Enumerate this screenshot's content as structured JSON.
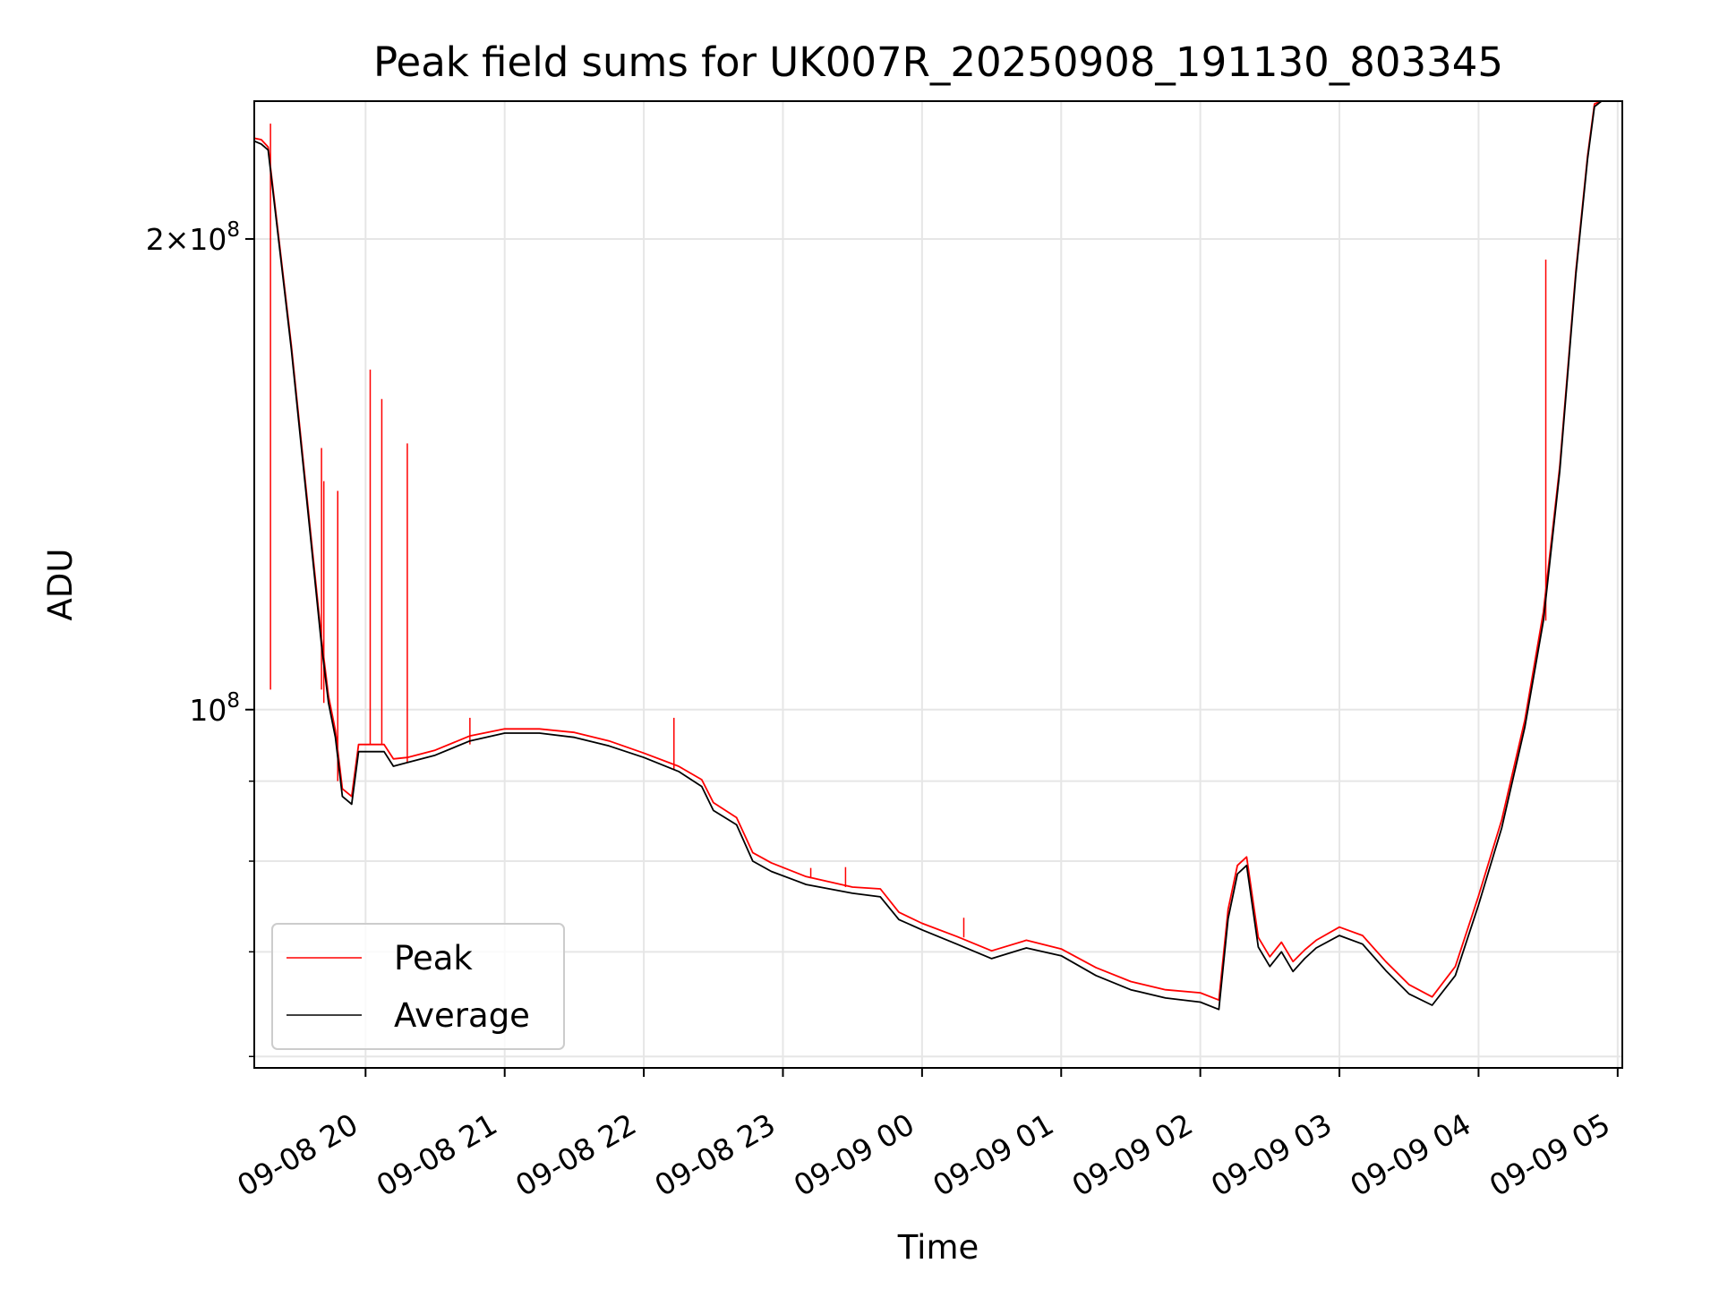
{
  "chart_data": {
    "type": "line",
    "title": "Peak field sums for UK007R_20250908_191130_803345",
    "xlabel": "Time",
    "ylabel": "ADU",
    "x_axis": {
      "kind": "datetime",
      "range": [
        "2025-09-08 19:12",
        "2025-09-09 05:02"
      ],
      "ticks": [
        {
          "t": "2025-09-08 20:00",
          "label": "09-08 20"
        },
        {
          "t": "2025-09-08 21:00",
          "label": "09-08 21"
        },
        {
          "t": "2025-09-08 22:00",
          "label": "09-08 22"
        },
        {
          "t": "2025-09-08 23:00",
          "label": "09-08 23"
        },
        {
          "t": "2025-09-09 00:00",
          "label": "09-09 00"
        },
        {
          "t": "2025-09-09 01:00",
          "label": "09-09 01"
        },
        {
          "t": "2025-09-09 02:00",
          "label": "09-09 02"
        },
        {
          "t": "2025-09-09 03:00",
          "label": "09-09 03"
        },
        {
          "t": "2025-09-09 04:00",
          "label": "09-09 04"
        },
        {
          "t": "2025-09-09 05:00",
          "label": "09-09 05"
        }
      ]
    },
    "y_axis": {
      "scale": "log",
      "range": [
        59000000,
        245000000
      ],
      "major_ticks": [
        {
          "v": 100000000,
          "mant": "",
          "exp": "8"
        },
        {
          "v": 200000000,
          "mant": "2",
          "exp": "8"
        }
      ],
      "minor_ticks": [
        60000000,
        70000000,
        80000000,
        90000000
      ]
    },
    "grid": true,
    "legend": {
      "placement": "lower-left",
      "entries": [
        {
          "name": "Peak",
          "color": "#ff0000"
        },
        {
          "name": "Average",
          "color": "#000000"
        }
      ]
    },
    "series": [
      {
        "name": "Average",
        "color": "#000000",
        "points": [
          [
            "2025-09-08 19:12",
            231000000
          ],
          [
            "2025-09-08 19:15",
            230000000
          ],
          [
            "2025-09-08 19:18",
            228000000
          ],
          [
            "2025-09-08 19:28",
            170000000
          ],
          [
            "2025-09-08 19:36",
            130000000
          ],
          [
            "2025-09-08 19:41",
            110000000
          ],
          [
            "2025-09-08 19:44",
            101000000
          ],
          [
            "2025-09-08 19:47",
            96000000
          ],
          [
            "2025-09-08 19:50",
            88000000
          ],
          [
            "2025-09-08 19:54",
            87000000
          ],
          [
            "2025-09-08 19:57",
            94000000
          ],
          [
            "2025-09-08 20:02",
            94000000
          ],
          [
            "2025-09-08 20:08",
            94000000
          ],
          [
            "2025-09-08 20:12",
            92000000
          ],
          [
            "2025-09-08 20:18",
            92500000
          ],
          [
            "2025-09-08 20:30",
            93500000
          ],
          [
            "2025-09-08 20:45",
            95500000
          ],
          [
            "2025-09-08 21:00",
            96600000
          ],
          [
            "2025-09-08 21:15",
            96600000
          ],
          [
            "2025-09-08 21:30",
            96000000
          ],
          [
            "2025-09-08 21:45",
            94800000
          ],
          [
            "2025-09-08 22:00",
            93200000
          ],
          [
            "2025-09-08 22:15",
            91300000
          ],
          [
            "2025-09-08 22:25",
            89300000
          ],
          [
            "2025-09-08 22:30",
            86200000
          ],
          [
            "2025-09-08 22:40",
            84400000
          ],
          [
            "2025-09-08 22:47",
            80000000
          ],
          [
            "2025-09-08 22:55",
            78800000
          ],
          [
            "2025-09-08 23:10",
            77300000
          ],
          [
            "2025-09-08 23:30",
            76300000
          ],
          [
            "2025-09-08 23:42",
            75900000
          ],
          [
            "2025-09-08 23:50",
            73400000
          ],
          [
            "2025-09-09 00:00",
            72300000
          ],
          [
            "2025-09-09 00:15",
            70800000
          ],
          [
            "2025-09-09 00:30",
            69300000
          ],
          [
            "2025-09-09 00:45",
            70400000
          ],
          [
            "2025-09-09 01:00",
            69600000
          ],
          [
            "2025-09-09 01:15",
            67600000
          ],
          [
            "2025-09-09 01:30",
            66200000
          ],
          [
            "2025-09-09 01:45",
            65400000
          ],
          [
            "2025-09-09 02:00",
            65000000
          ],
          [
            "2025-09-09 02:08",
            64300000
          ],
          [
            "2025-09-09 02:12",
            73500000
          ],
          [
            "2025-09-09 02:16",
            78500000
          ],
          [
            "2025-09-09 02:20",
            79500000
          ],
          [
            "2025-09-09 02:25",
            70500000
          ],
          [
            "2025-09-09 02:30",
            68500000
          ],
          [
            "2025-09-09 02:35",
            70000000
          ],
          [
            "2025-09-09 02:40",
            68000000
          ],
          [
            "2025-09-09 02:45",
            69300000
          ],
          [
            "2025-09-09 02:50",
            70400000
          ],
          [
            "2025-09-09 03:00",
            71700000
          ],
          [
            "2025-09-09 03:10",
            70800000
          ],
          [
            "2025-09-09 03:20",
            68100000
          ],
          [
            "2025-09-09 03:30",
            65800000
          ],
          [
            "2025-09-09 03:40",
            64700000
          ],
          [
            "2025-09-09 03:50",
            67600000
          ],
          [
            "2025-09-09 04:00",
            75000000
          ],
          [
            "2025-09-09 04:10",
            84000000
          ],
          [
            "2025-09-09 04:20",
            97500000
          ],
          [
            "2025-09-09 04:28",
            114000000
          ],
          [
            "2025-09-09 04:35",
            142000000
          ],
          [
            "2025-09-09 04:42",
            190000000
          ],
          [
            "2025-09-09 04:47",
            225000000
          ],
          [
            "2025-09-09 04:50",
            243000000
          ],
          [
            "2025-09-09 04:53",
            245000000
          ]
        ]
      },
      {
        "name": "Peak",
        "color": "#ff0000",
        "points": [
          [
            "2025-09-08 19:12",
            232000000
          ],
          [
            "2025-09-08 19:15",
            231500000
          ],
          [
            "2025-09-08 19:18",
            229000000
          ],
          [
            "2025-09-08 19:28",
            171000000
          ],
          [
            "2025-09-08 19:36",
            131000000
          ],
          [
            "2025-09-08 19:41",
            111000000
          ],
          [
            "2025-09-08 19:44",
            102000000
          ],
          [
            "2025-09-08 19:47",
            97000000
          ],
          [
            "2025-09-08 19:50",
            89000000
          ],
          [
            "2025-09-08 19:54",
            88000000
          ],
          [
            "2025-09-08 19:57",
            95000000
          ],
          [
            "2025-09-08 20:02",
            95000000
          ],
          [
            "2025-09-08 20:08",
            95000000
          ],
          [
            "2025-09-08 20:12",
            93000000
          ],
          [
            "2025-09-08 20:18",
            93200000
          ],
          [
            "2025-09-08 20:30",
            94200000
          ],
          [
            "2025-09-08 20:45",
            96200000
          ],
          [
            "2025-09-08 21:00",
            97200000
          ],
          [
            "2025-09-08 21:15",
            97200000
          ],
          [
            "2025-09-08 21:30",
            96700000
          ],
          [
            "2025-09-08 21:45",
            95500000
          ],
          [
            "2025-09-08 22:00",
            93800000
          ],
          [
            "2025-09-08 22:15",
            92000000
          ],
          [
            "2025-09-08 22:25",
            90200000
          ],
          [
            "2025-09-08 22:30",
            87200000
          ],
          [
            "2025-09-08 22:40",
            85300000
          ],
          [
            "2025-09-08 22:47",
            81000000
          ],
          [
            "2025-09-08 22:55",
            79800000
          ],
          [
            "2025-09-08 23:10",
            78200000
          ],
          [
            "2025-09-08 23:30",
            77000000
          ],
          [
            "2025-09-08 23:42",
            76800000
          ],
          [
            "2025-09-08 23:50",
            74200000
          ],
          [
            "2025-09-09 00:00",
            73000000
          ],
          [
            "2025-09-09 00:15",
            71600000
          ],
          [
            "2025-09-09 00:30",
            70100000
          ],
          [
            "2025-09-09 00:45",
            71200000
          ],
          [
            "2025-09-09 01:00",
            70300000
          ],
          [
            "2025-09-09 01:15",
            68400000
          ],
          [
            "2025-09-09 01:30",
            67000000
          ],
          [
            "2025-09-09 01:45",
            66200000
          ],
          [
            "2025-09-09 02:00",
            65900000
          ],
          [
            "2025-09-09 02:08",
            65200000
          ],
          [
            "2025-09-09 02:12",
            74500000
          ],
          [
            "2025-09-09 02:16",
            79500000
          ],
          [
            "2025-09-09 02:20",
            80500000
          ],
          [
            "2025-09-09 02:25",
            71500000
          ],
          [
            "2025-09-09 02:30",
            69500000
          ],
          [
            "2025-09-09 02:35",
            71000000
          ],
          [
            "2025-09-09 02:40",
            69000000
          ],
          [
            "2025-09-09 02:45",
            70200000
          ],
          [
            "2025-09-09 02:50",
            71200000
          ],
          [
            "2025-09-09 03:00",
            72600000
          ],
          [
            "2025-09-09 03:10",
            71700000
          ],
          [
            "2025-09-09 03:20",
            69000000
          ],
          [
            "2025-09-09 03:30",
            66700000
          ],
          [
            "2025-09-09 03:40",
            65500000
          ],
          [
            "2025-09-09 03:50",
            68500000
          ],
          [
            "2025-09-09 04:00",
            76000000
          ],
          [
            "2025-09-09 04:10",
            85000000
          ],
          [
            "2025-09-09 04:20",
            98500000
          ],
          [
            "2025-09-09 04:28",
            115500000
          ],
          [
            "2025-09-09 04:35",
            143000000
          ],
          [
            "2025-09-09 04:42",
            191000000
          ],
          [
            "2025-09-09 04:47",
            226000000
          ],
          [
            "2025-09-09 04:50",
            244000000
          ],
          [
            "2025-09-09 04:53",
            245000000
          ]
        ],
        "spikes": [
          [
            "2025-09-08 19:19",
            103000000,
            237000000
          ],
          [
            "2025-09-08 19:41",
            103000000,
            147000000
          ],
          [
            "2025-09-08 19:42",
            101000000,
            140000000
          ],
          [
            "2025-09-08 19:48",
            90000000,
            138000000
          ],
          [
            "2025-09-08 20:02",
            95000000,
            165000000
          ],
          [
            "2025-09-08 20:07",
            95000000,
            158000000
          ],
          [
            "2025-09-08 20:18",
            92500000,
            148000000
          ],
          [
            "2025-09-08 20:45",
            95000000,
            98800000
          ],
          [
            "2025-09-08 22:13",
            91500000,
            98800000
          ],
          [
            "2025-09-08 23:12",
            78000000,
            79200000
          ],
          [
            "2025-09-08 23:27",
            77000000,
            79300000
          ],
          [
            "2025-09-09 00:18",
            71500000,
            73600000
          ],
          [
            "2025-09-09 04:29",
            114000000,
            194000000
          ]
        ]
      }
    ]
  }
}
